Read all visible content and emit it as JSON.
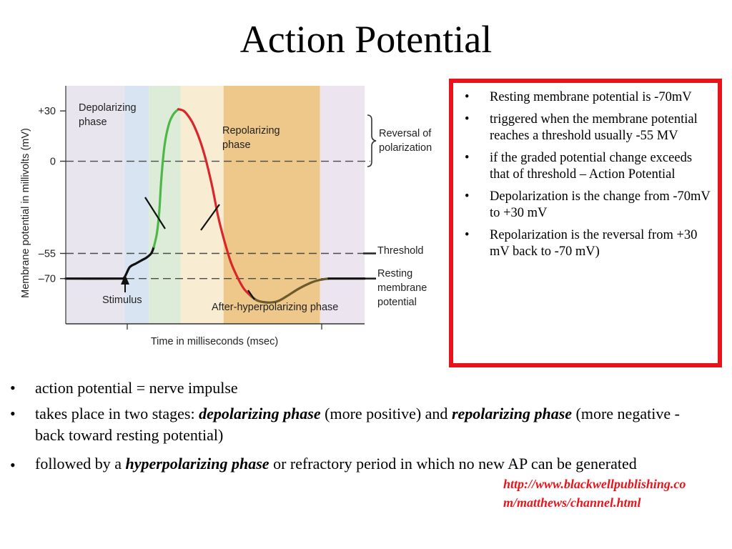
{
  "slide": {
    "title": "Action Potential",
    "notes": [
      "Resting membrane potential is -70mV",
      "triggered when the membrane potential reaches a threshold usually -55 MV",
      "if the graded potential change exceeds that of threshold – Action Potential",
      "Depolarization is the change from -70mV to +30 mV",
      "Repolarization is the reversal from +30 mV back to  -70 mV)"
    ],
    "bullets": {
      "b1": "action potential = nerve impulse",
      "b2_pre": "takes place in two stages: ",
      "b2_term1": "depolarizing phase",
      "b2_mid": " (more positive) and ",
      "b2_term2": "repolarizing phase",
      "b2_post": " (more negative - back toward resting potential)",
      "b3_pre": "followed by a ",
      "b3_term": "hyperpolarizing phase",
      "b3_post": " or refractory period in which no new AP can be generated"
    },
    "source": "http://www.blackwellpublishing.com/matthews/channel.html"
  },
  "colors": {
    "frame": "#e8141b",
    "depolarizing": "#4db848",
    "repolarizing": "#d8262a",
    "after_hyperpolarizing": "#6b5a2c",
    "baseline": "#111111"
  },
  "chart_data": {
    "type": "line",
    "ylabel": "Membrane potential in millivolts (mV)",
    "xlabel": "Time in milliseconds (msec)",
    "yticks": [
      {
        "value": 30,
        "label": "+30"
      },
      {
        "value": 0,
        "label": "0"
      },
      {
        "value": -55,
        "label": "–55"
      },
      {
        "value": -70,
        "label": "–70"
      }
    ],
    "ylim": [
      -97,
      45
    ],
    "xlim": [
      0,
      100
    ],
    "reference_lines": [
      {
        "value": 0,
        "label": "Reversal of polarization"
      },
      {
        "value": -55,
        "label": "Threshold"
      },
      {
        "value": -70,
        "label": "Resting membrane potential"
      }
    ],
    "annotations": {
      "depolarizing": "Depolarizing phase",
      "repolarizing": "Repolarizing phase",
      "stimulus": "Stimulus",
      "after_hyperpolarizing": "After-hyperpolarizing phase",
      "reversal": "Reversal of polarization",
      "threshold": "Threshold",
      "resting": "Resting membrane potential"
    },
    "bands": [
      {
        "from": 0,
        "to": 19.7,
        "color": "#e9e5ef"
      },
      {
        "from": 19.7,
        "to": 27.8,
        "color": "#d8e4f1"
      },
      {
        "from": 27.8,
        "to": 38.4,
        "color": "#ddecd8"
      },
      {
        "from": 38.4,
        "to": 52.8,
        "color": "#f8ecd3"
      },
      {
        "from": 52.8,
        "to": 85.1,
        "color": "#eec88a"
      },
      {
        "from": 85.1,
        "to": 100,
        "color": "#ece5ef"
      }
    ],
    "series": [
      {
        "segment": "resting",
        "color": "#111111",
        "points": [
          [
            0,
            -70
          ],
          [
            18,
            -70
          ],
          [
            19.5,
            -69.5
          ],
          [
            20.3,
            -67
          ],
          [
            21.5,
            -63
          ],
          [
            23.5,
            -61
          ],
          [
            25.5,
            -59
          ]
        ]
      },
      {
        "segment": "threshold",
        "color": "#111111",
        "points": [
          [
            25.5,
            -59
          ],
          [
            27,
            -57.5
          ],
          [
            28.6,
            -55
          ],
          [
            29.5,
            -51
          ]
        ]
      },
      {
        "segment": "depolarizing",
        "color": "#4db848",
        "points": [
          [
            29.5,
            -51
          ],
          [
            30.5,
            -43
          ],
          [
            31.3,
            -30
          ],
          [
            32,
            -10
          ],
          [
            33.1,
            10
          ],
          [
            34.5,
            22
          ],
          [
            36,
            28
          ],
          [
            37.7,
            31
          ]
        ]
      },
      {
        "segment": "repolarizing",
        "color": "#d8262a",
        "points": [
          [
            37.7,
            31
          ],
          [
            39.5,
            30
          ],
          [
            41.4,
            26
          ],
          [
            43,
            21
          ],
          [
            45,
            12
          ],
          [
            47,
            0
          ],
          [
            49,
            -15
          ],
          [
            51,
            -33
          ],
          [
            53,
            -47
          ],
          [
            55.2,
            -60
          ],
          [
            57.4,
            -69
          ],
          [
            59.6,
            -76
          ],
          [
            62,
            -80.5
          ]
        ]
      },
      {
        "segment": "after_hyperpolarizing",
        "color": "#6b5a2c",
        "points": [
          [
            62,
            -80.5
          ],
          [
            64,
            -83
          ],
          [
            66,
            -84
          ],
          [
            68.5,
            -84.3
          ],
          [
            71,
            -83.5
          ],
          [
            74,
            -80.5
          ],
          [
            78,
            -76
          ],
          [
            82,
            -72.5
          ],
          [
            85,
            -70.8
          ],
          [
            88,
            -70
          ]
        ]
      },
      {
        "segment": "return",
        "color": "#111111",
        "points": [
          [
            88,
            -70
          ],
          [
            100,
            -70
          ]
        ]
      }
    ]
  }
}
